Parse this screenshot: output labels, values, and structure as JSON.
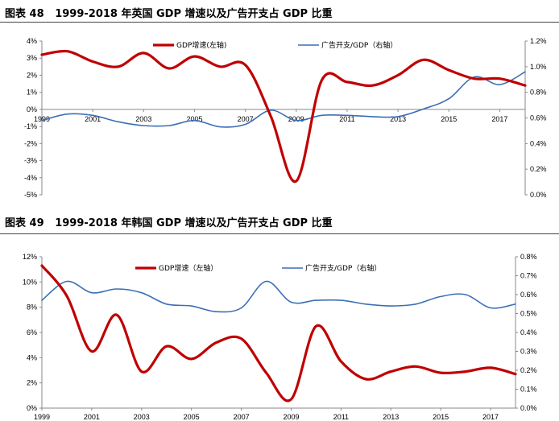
{
  "chart_data": [
    {
      "type": "line",
      "figure_label": "图表 48",
      "title": "1999-2018 年英国 GDP 增速以及广告开支占 GDP 比重",
      "x_tick_labels": [
        "1999",
        "2001",
        "2003",
        "2005",
        "2007",
        "2009",
        "2011",
        "2013",
        "2015",
        "2017"
      ],
      "x_range": [
        1999,
        2018
      ],
      "y_left": {
        "range": [
          -5,
          4
        ],
        "ticks": [
          -5,
          -4,
          -3,
          -2,
          -1,
          0,
          1,
          2,
          3,
          4
        ],
        "tick_labels": [
          "-5%",
          "-4%",
          "-3%",
          "-2%",
          "-1%",
          "0%",
          "1%",
          "2%",
          "3%",
          "4%"
        ]
      },
      "y_right": {
        "range": [
          0.0,
          1.2
        ],
        "ticks": [
          0.0,
          0.2,
          0.4,
          0.6,
          0.8,
          1.0,
          1.2
        ],
        "tick_labels": [
          "0.0%",
          "0.2%",
          "0.4%",
          "0.6%",
          "0.8%",
          "1.0%",
          "1.2%"
        ]
      },
      "legend_position": "top",
      "series": [
        {
          "name": "GDP增速(左轴)",
          "axis": "left",
          "color": "#c00000",
          "x": [
            1999,
            2000,
            2001,
            2002,
            2003,
            2004,
            2005,
            2006,
            2007,
            2008,
            2009,
            2010,
            2011,
            2012,
            2013,
            2014,
            2015,
            2016,
            2017,
            2018
          ],
          "values": [
            3.2,
            3.4,
            2.8,
            2.5,
            3.3,
            2.4,
            3.1,
            2.5,
            2.6,
            -0.4,
            -4.2,
            1.7,
            1.6,
            1.4,
            2.0,
            2.9,
            2.3,
            1.8,
            1.8,
            1.4
          ]
        },
        {
          "name": "广告开支/GDP（右轴）",
          "axis": "right",
          "color": "#3a6fb5",
          "x": [
            1999,
            2000,
            2001,
            2002,
            2003,
            2004,
            2005,
            2006,
            2007,
            2008,
            2009,
            2010,
            2011,
            2012,
            2013,
            2014,
            2015,
            2016,
            2017,
            2018
          ],
          "values": [
            0.58,
            0.63,
            0.62,
            0.57,
            0.54,
            0.54,
            0.58,
            0.53,
            0.55,
            0.66,
            0.58,
            0.62,
            0.62,
            0.61,
            0.61,
            0.67,
            0.75,
            0.92,
            0.86,
            0.96
          ]
        }
      ]
    },
    {
      "type": "line",
      "figure_label": "图表 49",
      "title": "1999-2018 年韩国 GDP 增速以及广告开支占 GDP 比重",
      "x_tick_labels": [
        "1999",
        "2001",
        "2003",
        "2005",
        "2007",
        "2009",
        "2011",
        "2013",
        "2015",
        "2017"
      ],
      "x_range": [
        1999,
        2018
      ],
      "y_left": {
        "range": [
          0,
          12
        ],
        "ticks": [
          0,
          2,
          4,
          6,
          8,
          10,
          12
        ],
        "tick_labels": [
          "0%",
          "2%",
          "4%",
          "6%",
          "8%",
          "10%",
          "12%"
        ]
      },
      "y_right": {
        "range": [
          0.0,
          0.8
        ],
        "ticks": [
          0.0,
          0.1,
          0.2,
          0.3,
          0.4,
          0.5,
          0.6,
          0.7,
          0.8
        ],
        "tick_labels": [
          "0.0%",
          "0.1%",
          "0.2%",
          "0.3%",
          "0.4%",
          "0.5%",
          "0.6%",
          "0.7%",
          "0.8%"
        ]
      },
      "legend_position": "top",
      "series": [
        {
          "name": "GDP增速（左轴）",
          "axis": "left",
          "color": "#c00000",
          "x": [
            1999,
            2000,
            2001,
            2002,
            2003,
            2004,
            2005,
            2006,
            2007,
            2008,
            2009,
            2010,
            2011,
            2012,
            2013,
            2014,
            2015,
            2016,
            2017,
            2018
          ],
          "values": [
            11.3,
            8.9,
            4.5,
            7.4,
            2.9,
            4.9,
            3.9,
            5.2,
            5.5,
            2.8,
            0.7,
            6.5,
            3.7,
            2.3,
            2.9,
            3.3,
            2.8,
            2.9,
            3.2,
            2.7
          ]
        },
        {
          "name": "广告开支/GDP（右轴）",
          "axis": "right",
          "color": "#3a6fb5",
          "x": [
            1999,
            2000,
            2001,
            2002,
            2003,
            2004,
            2005,
            2006,
            2007,
            2008,
            2009,
            2010,
            2011,
            2012,
            2013,
            2014,
            2015,
            2016,
            2017,
            2018
          ],
          "values": [
            0.57,
            0.67,
            0.61,
            0.63,
            0.61,
            0.55,
            0.54,
            0.51,
            0.53,
            0.67,
            0.56,
            0.57,
            0.57,
            0.55,
            0.54,
            0.55,
            0.59,
            0.6,
            0.53,
            0.55
          ]
        }
      ]
    }
  ]
}
